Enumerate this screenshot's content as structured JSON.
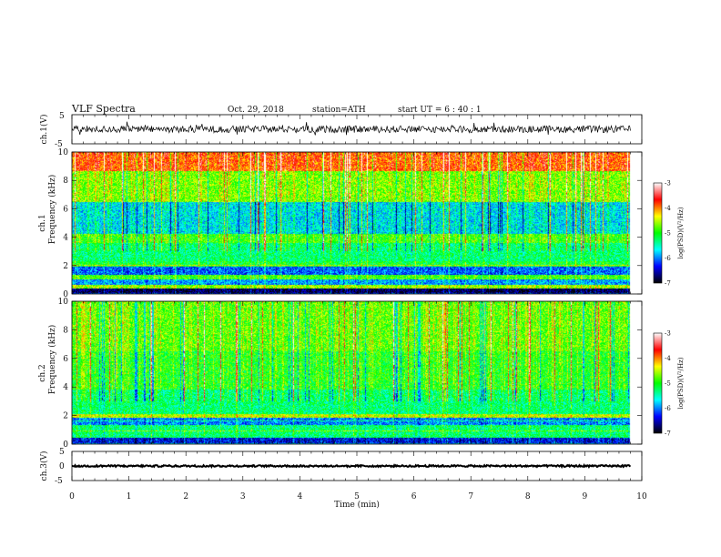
{
  "header": {
    "title": "VLF  Spectra",
    "date": "Oct. 29, 2018",
    "station": "station=ATH",
    "start_ut": "start  UT  =   6  : 40 : 1"
  },
  "chart_data": [
    {
      "type": "line",
      "panel": "ch1-waveform",
      "ylabel": "ch.1(V)",
      "ylim": [
        -5,
        5
      ],
      "yticks": [
        "5",
        "-5"
      ],
      "x_unit": "min",
      "xlim": [
        0,
        10
      ],
      "data_extent_min": 9.8,
      "envelope": {
        "mean": 0.0,
        "typical_range": [
          -1.2,
          1.2
        ],
        "spike_range": [
          -2.6,
          2.6
        ]
      },
      "color": "#000000"
    },
    {
      "type": "heatmap",
      "panel": "ch1-spectrogram",
      "ylabel_top": "ch.1",
      "ylabel": "Frequency  (kHz)",
      "ylim": [
        0,
        10
      ],
      "yticks": [
        "0",
        "2",
        "4",
        "6",
        "8",
        "10"
      ],
      "xlim": [
        0,
        10
      ],
      "data_extent_min": 9.8,
      "colorbar": {
        "label": "log(PSD)(V²/Hz)",
        "range": [
          -7,
          -3
        ],
        "ticks": [
          "-7",
          "-6",
          "-5",
          "-4",
          "-3"
        ],
        "colors": [
          "#000000",
          "#0000ff",
          "#00ffff",
          "#00ff00",
          "#ffff00",
          "#ff0000",
          "#ffffff"
        ]
      },
      "bands_khz": [
        {
          "f0": 0.0,
          "f1": 0.35,
          "level": -6.8
        },
        {
          "f0": 0.35,
          "f1": 0.6,
          "level": -4.6
        },
        {
          "f0": 0.6,
          "f1": 1.0,
          "level": -5.9
        },
        {
          "f0": 1.0,
          "f1": 1.3,
          "level": -4.9
        },
        {
          "f0": 1.3,
          "f1": 1.9,
          "level": -6.1
        },
        {
          "f0": 1.9,
          "f1": 2.3,
          "level": -5.1
        },
        {
          "f0": 2.3,
          "f1": 3.6,
          "level": -5.3
        },
        {
          "f0": 3.6,
          "f1": 4.2,
          "level": -4.9
        },
        {
          "f0": 4.2,
          "f1": 6.5,
          "level": -5.7
        },
        {
          "f0": 6.5,
          "f1": 8.7,
          "level": -4.7
        },
        {
          "f0": 8.7,
          "f1": 10.0,
          "level": -3.9
        }
      ]
    },
    {
      "type": "heatmap",
      "panel": "ch2-spectrogram",
      "ylabel_top": "ch.2",
      "ylabel": "Frequency  (kHz)",
      "ylim": [
        0,
        10
      ],
      "yticks": [
        "0",
        "2",
        "4",
        "6",
        "8",
        "10"
      ],
      "xlim": [
        0,
        10
      ],
      "data_extent_min": 9.8,
      "colorbar": {
        "label": "log(PSD)(V²/Hz)",
        "range": [
          -7,
          -3
        ],
        "ticks": [
          "-7",
          "-6",
          "-5",
          "-4",
          "-3"
        ],
        "colors": [
          "#000000",
          "#0000ff",
          "#00ffff",
          "#00ff00",
          "#ffff00",
          "#ff0000",
          "#ffffff"
        ]
      },
      "bands_khz": [
        {
          "f0": 0.0,
          "f1": 0.4,
          "level": -6.4
        },
        {
          "f0": 0.4,
          "f1": 1.3,
          "level": -5.3
        },
        {
          "f0": 1.3,
          "f1": 1.8,
          "level": -6.0
        },
        {
          "f0": 1.8,
          "f1": 2.1,
          "level": -4.5
        },
        {
          "f0": 2.1,
          "f1": 3.8,
          "level": -5.3
        },
        {
          "f0": 3.8,
          "f1": 6.5,
          "level": -5.0
        },
        {
          "f0": 6.5,
          "f1": 10.0,
          "level": -4.8
        }
      ]
    },
    {
      "type": "line",
      "panel": "ch3-waveform",
      "ylabel": "ch.3(V)",
      "ylim": [
        -5,
        5
      ],
      "yticks": [
        "5",
        "0",
        "-5"
      ],
      "xlabel": "Time  (min)",
      "xlim": [
        0,
        10
      ],
      "xticks": [
        "0",
        "1",
        "2",
        "3",
        "4",
        "5",
        "6",
        "7",
        "8",
        "9",
        "10"
      ],
      "data_extent_min": 9.8,
      "envelope": {
        "mean": 0.0,
        "typical_range": [
          -0.3,
          0.3
        ],
        "spike_range": [
          -0.3,
          0.3
        ]
      },
      "color": "#000000"
    }
  ]
}
